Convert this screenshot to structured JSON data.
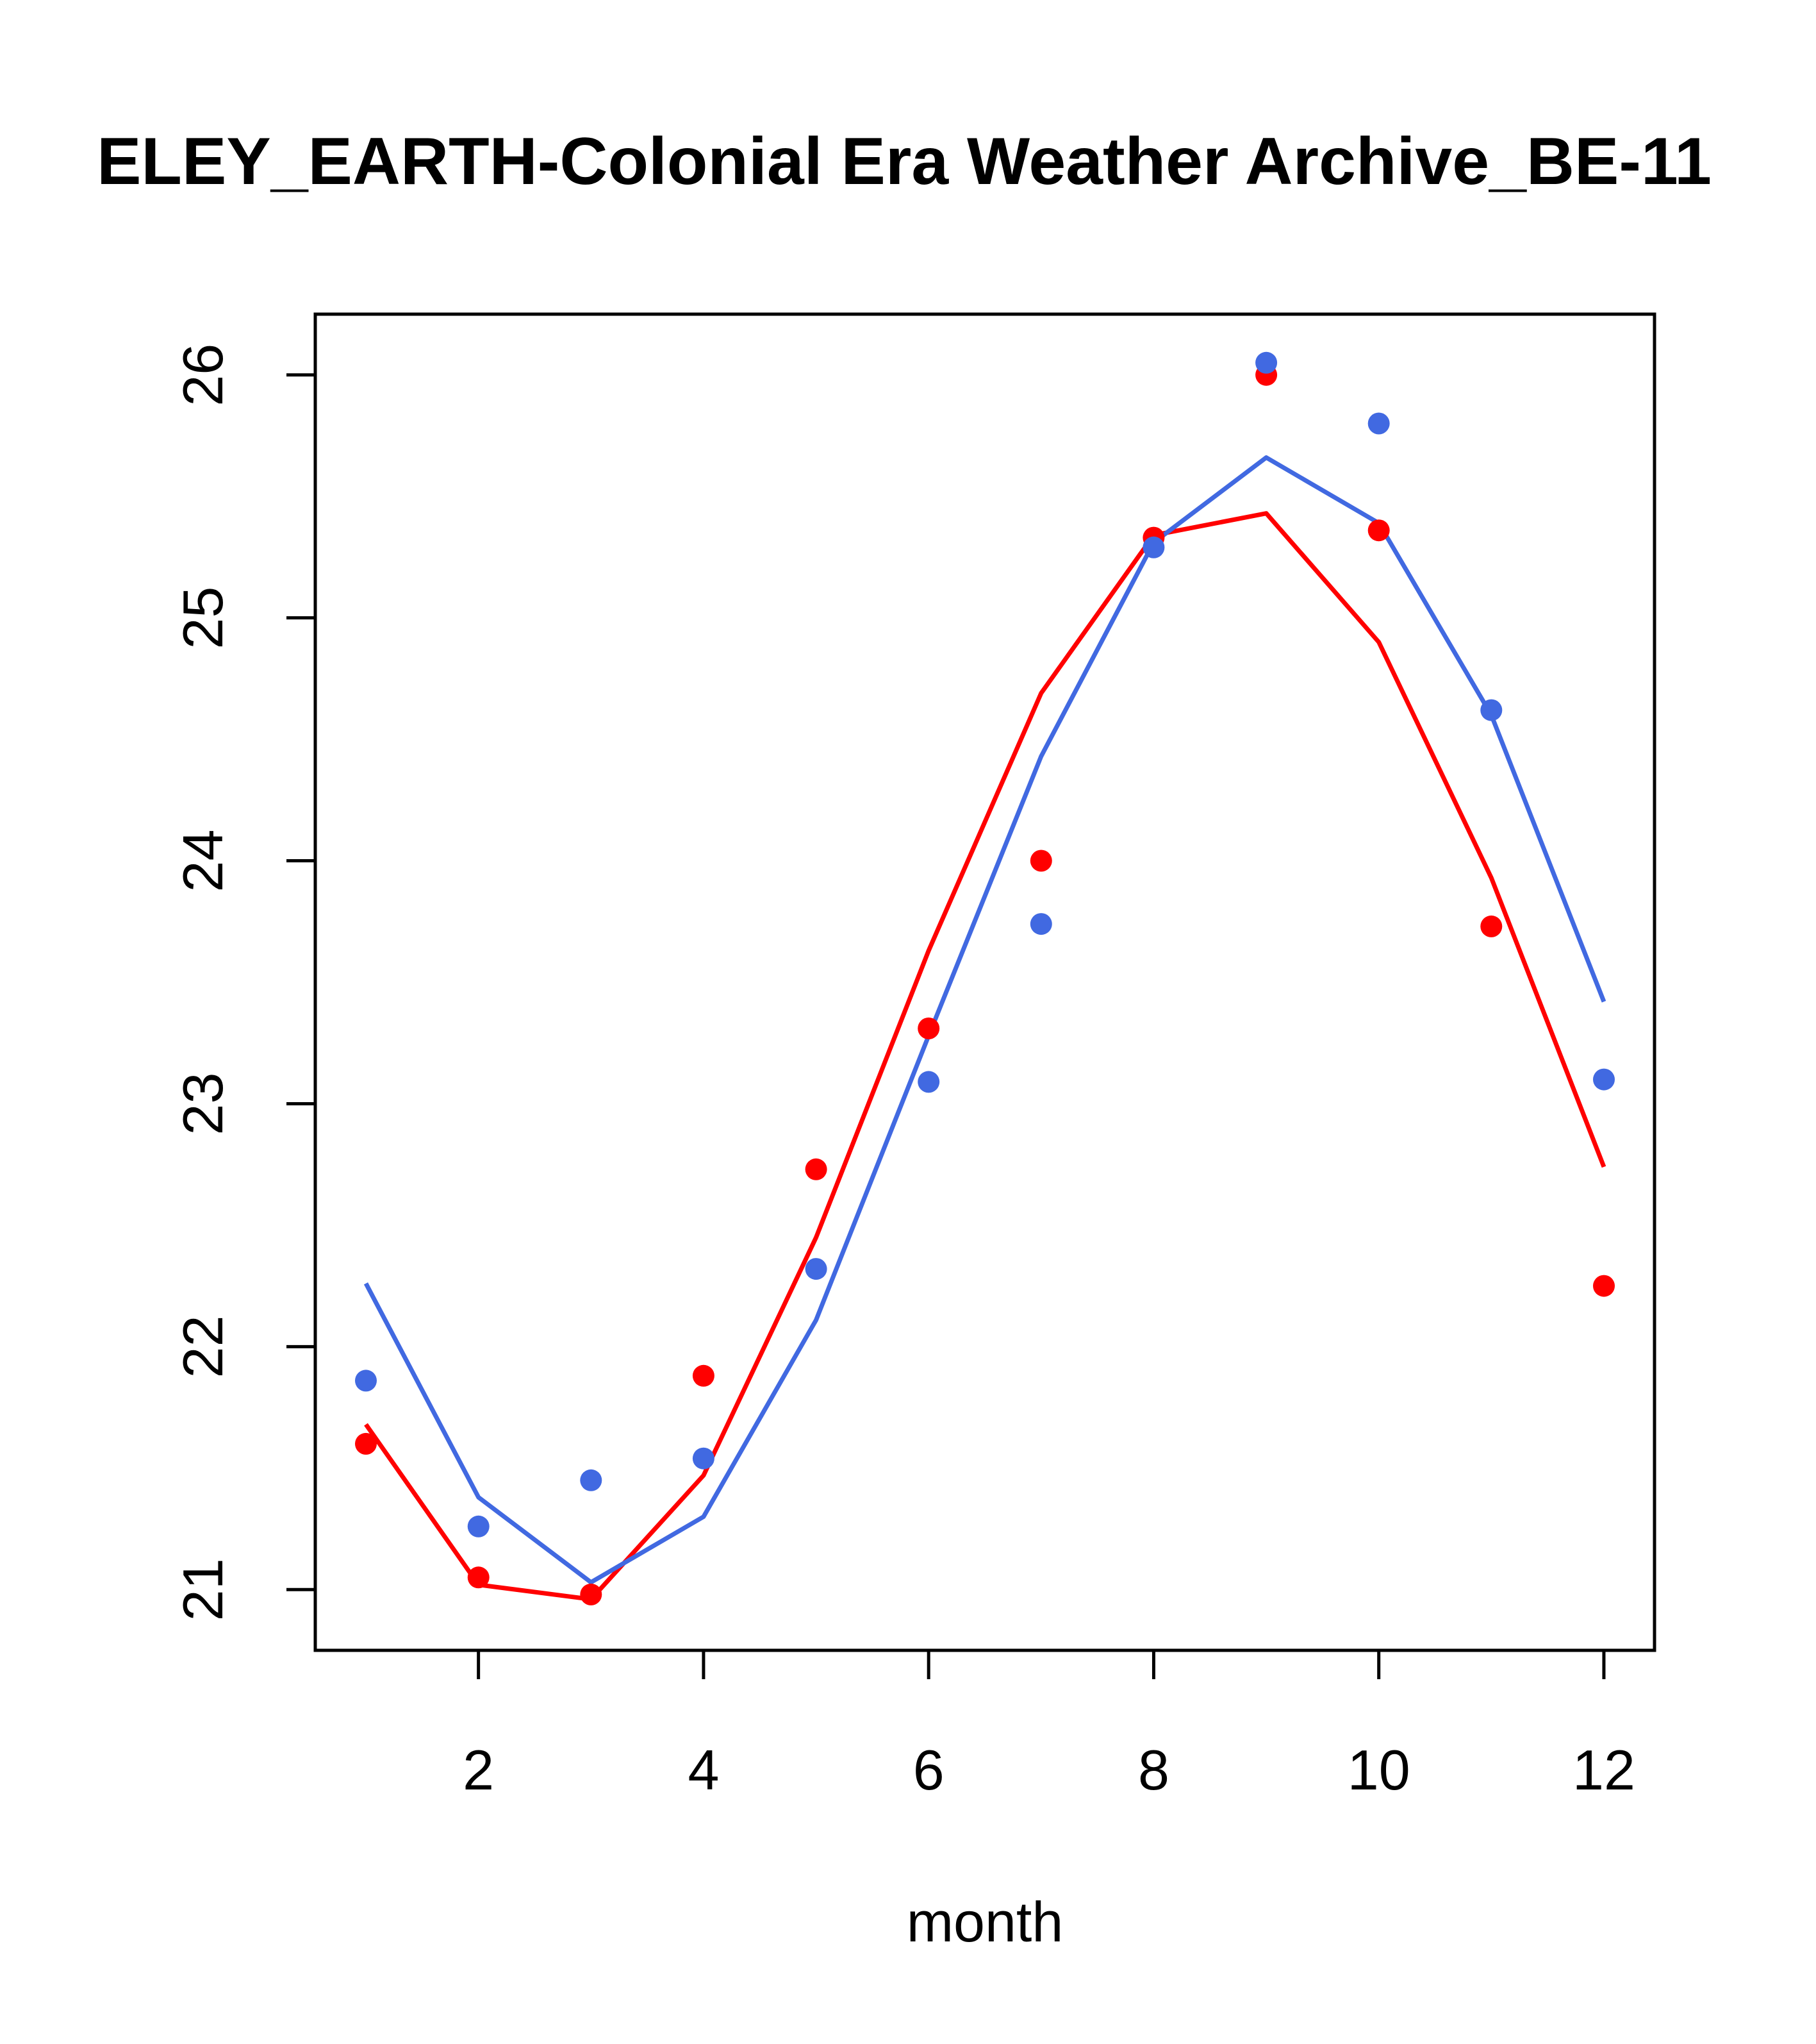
{
  "chart_data": {
    "type": "scatter",
    "title": "ELEY_EARTH-Colonial Era Weather Archive_BE-11",
    "xlabel": "month",
    "ylabel": "",
    "xlim": [
      0.55,
      12.45
    ],
    "ylim": [
      20.75,
      26.25
    ],
    "x_ticks": [
      2,
      4,
      6,
      8,
      10,
      12
    ],
    "y_ticks": [
      21,
      22,
      23,
      24,
      25,
      26
    ],
    "grid": false,
    "legend": "none",
    "x": [
      1,
      2,
      3,
      4,
      5,
      6,
      7,
      8,
      9,
      10,
      11,
      12
    ],
    "series": [
      {
        "color": "#ff0000",
        "points": [
          21.6,
          21.05,
          20.98,
          21.88,
          22.73,
          23.31,
          24.0,
          25.33,
          26.0,
          25.36,
          23.73,
          22.25
        ],
        "line": [
          21.68,
          21.02,
          20.96,
          21.47,
          22.45,
          23.63,
          24.69,
          25.34,
          25.43,
          24.9,
          23.93,
          22.74
        ]
      },
      {
        "color": "#4169e1",
        "points": [
          21.86,
          21.26,
          21.45,
          21.54,
          22.32,
          23.09,
          23.74,
          25.29,
          26.05,
          25.8,
          24.62,
          23.1
        ],
        "line": [
          22.26,
          21.38,
          21.03,
          21.3,
          22.11,
          23.28,
          24.43,
          25.31,
          25.66,
          25.39,
          24.6,
          23.42
        ]
      }
    ]
  }
}
